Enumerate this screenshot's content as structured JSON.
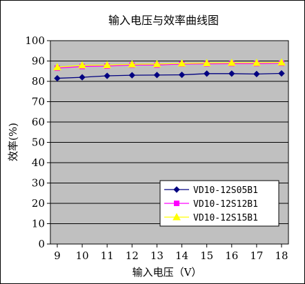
{
  "chart_data": {
    "type": "line",
    "title": "输入电压与效率曲线图",
    "xlabel": "输入电压（V）",
    "ylabel": "效率(%)",
    "x": [
      9,
      10,
      11,
      12,
      13,
      14,
      15,
      16,
      17,
      18
    ],
    "x_tick_labels": [
      "9",
      "10",
      "11",
      "12",
      "13",
      "14",
      "15",
      "16",
      "17",
      "18"
    ],
    "xlim": [
      9,
      18
    ],
    "ylim": [
      0,
      100
    ],
    "y_tick_labels": [
      "0",
      "10",
      "20",
      "30",
      "40",
      "50",
      "60",
      "70",
      "80",
      "90",
      "100"
    ],
    "grid": true,
    "plot_background": "#c0c0c0",
    "legend_position": "lower-right",
    "series": [
      {
        "name": "VD10-12S05B1",
        "color": "#000080",
        "marker": "diamond",
        "values": [
          81.5,
          82,
          82.7,
          83,
          83.1,
          83.2,
          83.8,
          83.8,
          83.6,
          83.9
        ]
      },
      {
        "name": "VD10-12S12B1",
        "color": "#ff00ff",
        "marker": "square",
        "values": [
          86.5,
          87.3,
          87.5,
          88,
          88,
          88.5,
          88.6,
          88.7,
          88.7,
          88.9
        ]
      },
      {
        "name": "VD10-12S15B1",
        "color": "#ffff00",
        "marker": "triangle",
        "values": [
          87,
          87.9,
          88,
          88.4,
          88.5,
          88.8,
          89,
          89.1,
          89.1,
          89.3
        ]
      }
    ]
  }
}
